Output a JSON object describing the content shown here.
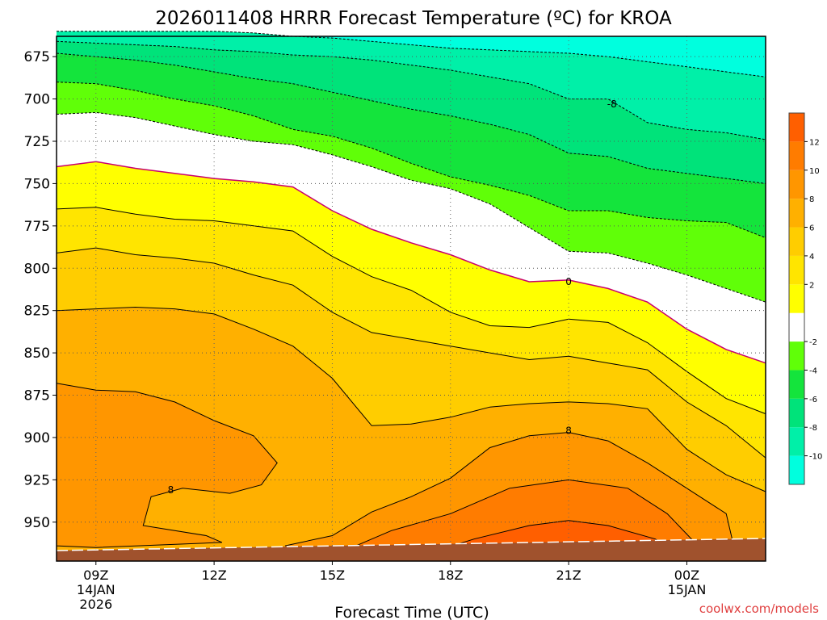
{
  "chart_data": {
    "type": "heatmap",
    "title": "2026011408 HRRR Forecast Temperature (ºC) for KROA",
    "xlabel": "Forecast Time (UTC)",
    "ylabel": "",
    "credit": "coolwx.com/models",
    "x_ticks": [
      {
        "hour": 9,
        "lines": [
          "09Z",
          "14JAN",
          "2026"
        ]
      },
      {
        "hour": 12,
        "lines": [
          "12Z"
        ]
      },
      {
        "hour": 15,
        "lines": [
          "15Z"
        ]
      },
      {
        "hour": 18,
        "lines": [
          "18Z"
        ]
      },
      {
        "hour": 21,
        "lines": [
          "21Z"
        ]
      },
      {
        "hour": 24,
        "lines": [
          "00Z",
          "15JAN"
        ]
      }
    ],
    "xlim": [
      8,
      26
    ],
    "y_ticks": [
      675,
      700,
      725,
      750,
      775,
      800,
      825,
      850,
      875,
      900,
      925,
      950
    ],
    "ylim": [
      663,
      973
    ],
    "colorbar": {
      "levels": [
        -12,
        -10,
        -8,
        -6,
        -4,
        -2,
        0,
        2,
        4,
        6,
        8,
        10,
        12,
        14
      ],
      "labels": [
        -10,
        -8,
        -6,
        -4,
        -2,
        2,
        4,
        6,
        8,
        10,
        12
      ],
      "colors": [
        "#00ffde",
        "#00f0a8",
        "#00e37a",
        "#14e43c",
        "#60ff08",
        "#ffffff",
        "#ffff00",
        "#ffe500",
        "#ffcd00",
        "#ffb000",
        "#ff9600",
        "#ff7c00",
        "#ff5f00"
      ]
    },
    "contour_labels": [
      {
        "text": "-8",
        "hour": 22.1,
        "p": 703
      },
      {
        "text": "0",
        "hour": 21.0,
        "p": 808
      },
      {
        "text": "8",
        "hour": 21.0,
        "p": 896
      },
      {
        "text": "8",
        "hour": 10.9,
        "p": 931
      }
    ],
    "terrain_color": "#a0522d"
  }
}
